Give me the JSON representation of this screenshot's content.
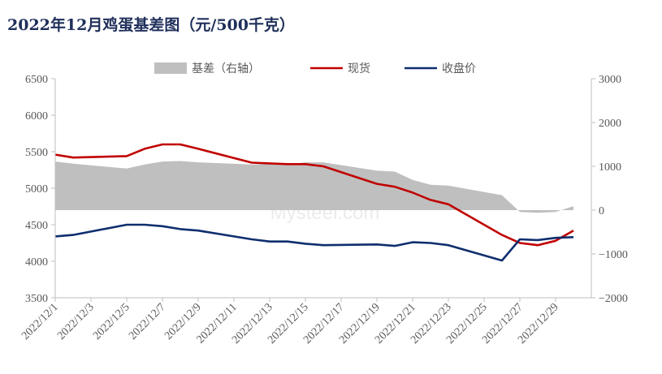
{
  "title": "2022年12月鸡蛋基差图（元/500千克）",
  "watermark": "Mysteel.com",
  "chart_data": {
    "type": "line",
    "title": "2022年12月鸡蛋基差图（元/500千克）",
    "x": [
      "2022/12/1",
      "2022/12/2",
      "2022/12/5",
      "2022/12/6",
      "2022/12/7",
      "2022/12/8",
      "2022/12/9",
      "2022/12/12",
      "2022/12/13",
      "2022/12/14",
      "2022/12/15",
      "2022/12/16",
      "2022/12/19",
      "2022/12/20",
      "2022/12/21",
      "2022/12/22",
      "2022/12/23",
      "2022/12/26",
      "2022/12/27",
      "2022/12/28",
      "2022/12/29",
      "2022/12/30"
    ],
    "x_tick_labels": [
      "2022/12/1",
      "2022/12/3",
      "2022/12/5",
      "2022/12/7",
      "2022/12/9",
      "2022/12/11",
      "2022/12/13",
      "2022/12/15",
      "2022/12/17",
      "2022/12/19",
      "2022/12/21",
      "2022/12/23",
      "2022/12/25",
      "2022/12/27",
      "2022/12/29"
    ],
    "y_left": {
      "lim": [
        3500,
        6500
      ],
      "ticks": [
        3500,
        4000,
        4500,
        5000,
        5500,
        6000,
        6500
      ]
    },
    "y_right": {
      "lim": [
        -2000,
        3000
      ],
      "ticks": [
        -2000,
        -1000,
        0,
        1000,
        2000,
        3000
      ]
    },
    "legend_position": "top",
    "grid": false,
    "series": [
      {
        "name": "基差（右轴）",
        "kind": "area",
        "axis": "right",
        "color": "#bfbfbf",
        "values": [
          1110,
          1060,
          950,
          1040,
          1110,
          1120,
          1090,
          1040,
          1050,
          1040,
          1090,
          1090,
          900,
          880,
          690,
          580,
          560,
          340,
          -40,
          -60,
          -40,
          90
        ]
      },
      {
        "name": "现货",
        "kind": "line",
        "axis": "left",
        "color": "#c00000",
        "values": [
          5460,
          5420,
          5440,
          5540,
          5600,
          5600,
          5540,
          5350,
          5340,
          5330,
          5330,
          5300,
          5060,
          5020,
          4940,
          4840,
          4780,
          4360,
          4250,
          4220,
          4280,
          4420
        ]
      },
      {
        "name": "收盘价",
        "kind": "line",
        "axis": "left",
        "color": "#0e2e6e",
        "values": [
          4340,
          4360,
          4500,
          4500,
          4480,
          4440,
          4420,
          4300,
          4270,
          4270,
          4240,
          4220,
          4230,
          4210,
          4260,
          4250,
          4220,
          4010,
          4300,
          4290,
          4320,
          4330
        ]
      }
    ]
  }
}
